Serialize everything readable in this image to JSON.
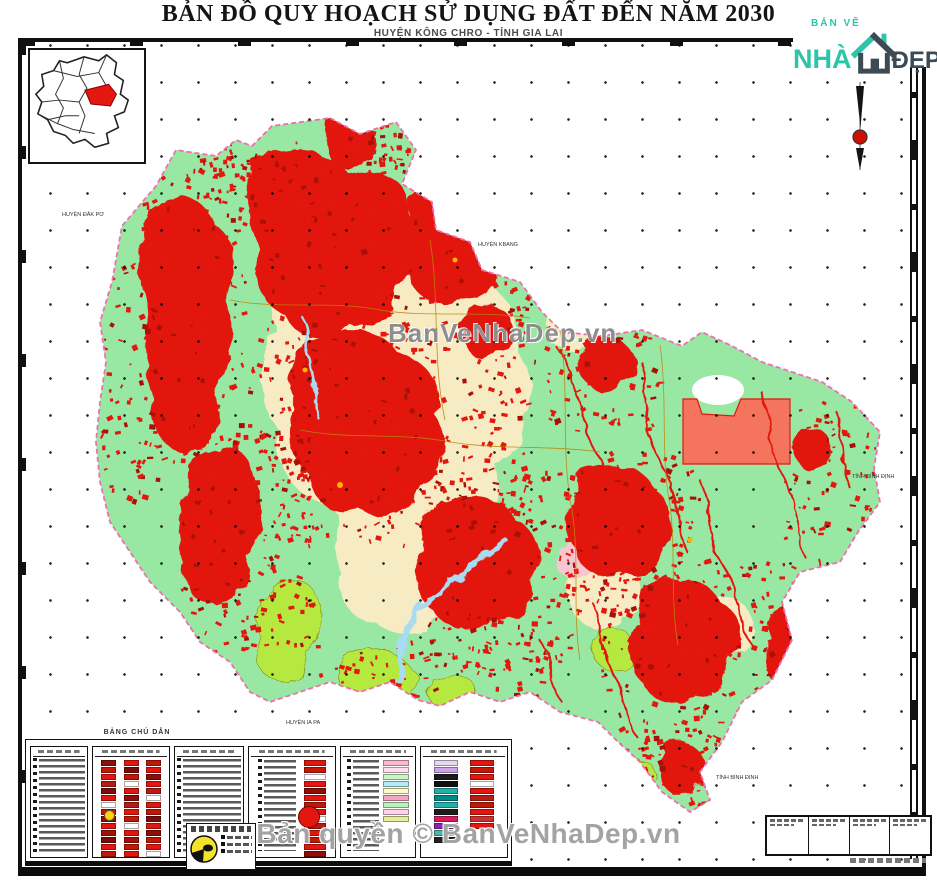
{
  "header": {
    "title": "BẢN ĐỒ QUY HOẠCH SỬ DỤNG ĐẤT ĐẾN NĂM 2030",
    "subtitle": "HUYỆN KÔNG CHRO - TỈNH GIA LAI"
  },
  "logo": {
    "top": "BẢN VẼ",
    "main": "NHÀ",
    "suffix": "ĐẸP",
    "teal": "#2ec4a9",
    "dark": "#3d4a53"
  },
  "watermark": {
    "center": "BanVeNhaDep.vn",
    "copyright": "Bản quyền © BanVeNhaDep.vn"
  },
  "legend": {
    "title": "BẢNG CHÚ DẪN",
    "swatches": {
      "p2a": [
        "#8e0e08",
        "#c21807",
        "#e3170f",
        "#b71c14",
        "#7a0c0c",
        "#e3170f",
        "#ffffff",
        "#c21807",
        "#8e0e08",
        "#e3170f",
        "#a51008",
        "#7a0c0c",
        "#e3170f",
        "#c21807",
        "#2e7d32",
        "#8e0e08",
        "#e3170f",
        "#b71c14"
      ],
      "p2b": [
        "#e3170f",
        "#7a0c0c",
        "#c21807",
        "#ffffff",
        "#e3170f",
        "#8e0e08",
        "#b71c14",
        "#e3170f",
        "#c21807",
        "#ffffff",
        "#e3170f",
        "#a51008",
        "#c21807",
        "#e3170f",
        "#7a0c0c",
        "#e3170f",
        "#c21807",
        "#8e0e08"
      ],
      "p2c": [
        "#c21807",
        "#e3170f",
        "#8e0e08",
        "#e3170f",
        "#b71c14",
        "#ffffff",
        "#e3170f",
        "#c21807",
        "#7a0c0c",
        "#e3170f",
        "#8e0e08",
        "#c21807",
        "#e3170f",
        "#ffffff",
        "#b71c14",
        "#e3170f",
        "#a51008",
        "#e3170f"
      ],
      "p4": [
        "#e3170f",
        "#c21807",
        "#ffffff",
        "#e3170f",
        "#8e0e08",
        "#e3170f",
        "#c21807",
        "#e3170f",
        "#ffffff",
        "#b71c14",
        "#e3170f",
        "#c21807",
        "#e3170f",
        "#8e0e08"
      ],
      "p5": [
        "#f8bbd0",
        "#ffe0f0",
        "#c8f7c5",
        "#b2ebf2",
        "#fff9c4",
        "#f4a7c3",
        "#bdf0b8",
        "#ffd1e8",
        "#e6ee9c"
      ],
      "p6a": [
        "#e8d5f2",
        "#caa6e8",
        "#1c1c1c",
        "#101010",
        "#20b2aa",
        "#008b8b",
        "#20b2aa",
        "#1c1c1c",
        "#d81b60",
        "#8e24aa",
        "#4db6ac",
        "#222222"
      ],
      "p6b": [
        "#e3170f",
        "#c21807",
        "#e3170f",
        "#ffffff",
        "#e3170f",
        "#b71c14",
        "#c21807",
        "#e3170f",
        "#d32f2f",
        "#e3170f"
      ]
    }
  },
  "map": {
    "colors": {
      "forest_green": "#98e7a3",
      "agriculture_cream": "#f6ebc3",
      "builtup_red": "#e3170f",
      "planned_zone_salmon": "#f4745e",
      "perennial_chartreuse": "#b5e93f",
      "water_blue": "#a8dcf2",
      "boundary_pink": "#f06eae"
    },
    "labels": [
      {
        "text": "HUYỆN ĐĂK PƠ"
      },
      {
        "text": "HUYỆN KBANG"
      },
      {
        "text": "TỈNH BÌNH ĐỊNH"
      },
      {
        "text": "HUYỆN IA PA"
      },
      {
        "text": "TỈNH BÌNH ĐỊNH"
      }
    ]
  }
}
